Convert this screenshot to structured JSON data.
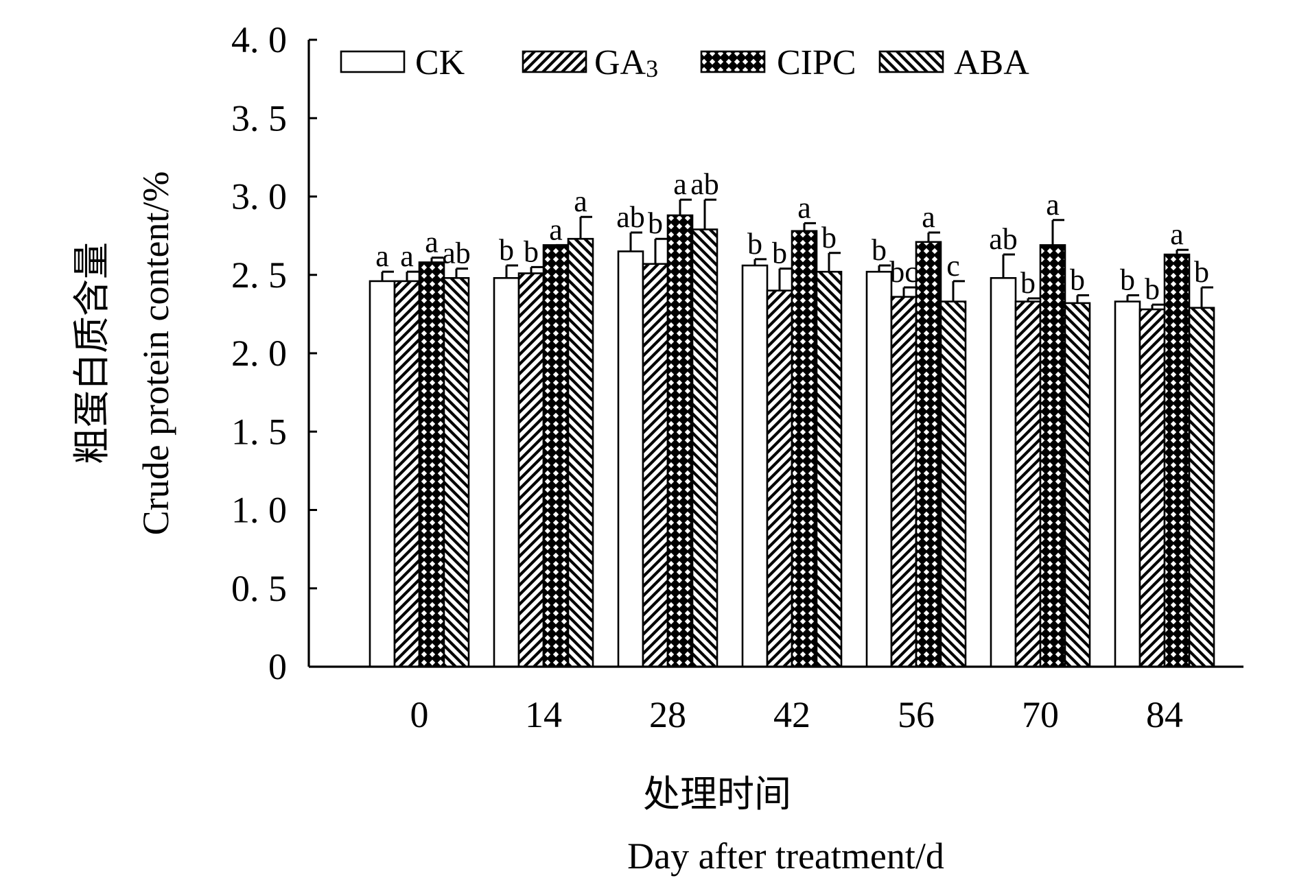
{
  "chart_data": {
    "type": "bar",
    "title": "",
    "categories": [
      "0",
      "14",
      "28",
      "42",
      "56",
      "70",
      "84"
    ],
    "xlabel_cn": "处理时间",
    "xlabel": "Day after treatment/d",
    "ylabel_cn": "粗蛋白质含量",
    "ylabel": "Crude protein content/%",
    "ylim": [
      0,
      4.0
    ],
    "yticks": [
      0,
      0.5,
      1.0,
      1.5,
      2.0,
      2.5,
      3.0,
      3.5,
      4.0
    ],
    "ytick_labels": [
      "0",
      "0. 5",
      "1. 0",
      "1. 5",
      "2. 0",
      "2. 5",
      "3. 0",
      "3. 5",
      "4. 0"
    ],
    "legend_position": "top-left",
    "series": [
      {
        "name": "CK",
        "legend_label": "CK",
        "pattern": "open",
        "values": [
          2.46,
          2.48,
          2.65,
          2.56,
          2.52,
          2.48,
          2.33
        ],
        "errors": [
          0.06,
          0.08,
          0.12,
          0.04,
          0.04,
          0.15,
          0.04
        ],
        "labels": [
          "a",
          "b",
          "ab",
          "b",
          "b",
          "ab",
          "b"
        ]
      },
      {
        "name": "GA3",
        "legend_label": "GA",
        "legend_subscript": "3",
        "pattern": "right-diagonal",
        "values": [
          2.46,
          2.51,
          2.57,
          2.4,
          2.36,
          2.33,
          2.28
        ],
        "errors": [
          0.06,
          0.04,
          0.16,
          0.14,
          0.06,
          0.02,
          0.03
        ],
        "labels": [
          "a",
          "b",
          "b",
          "b",
          "bc",
          "b",
          "b"
        ]
      },
      {
        "name": "CIPC",
        "legend_label": "CIPC",
        "pattern": "crosshatch",
        "values": [
          2.58,
          2.69,
          2.88,
          2.78,
          2.71,
          2.69,
          2.63
        ],
        "errors": [
          0.03,
          0.0,
          0.1,
          0.05,
          0.06,
          0.16,
          0.03
        ],
        "labels": [
          "a",
          "a",
          "a",
          "a",
          "a",
          "a",
          "a"
        ]
      },
      {
        "name": "ABA",
        "legend_label": "ABA",
        "pattern": "left-diagonal",
        "values": [
          2.48,
          2.73,
          2.79,
          2.52,
          2.33,
          2.32,
          2.29
        ],
        "errors": [
          0.06,
          0.14,
          0.19,
          0.12,
          0.13,
          0.05,
          0.13
        ],
        "labels": [
          "ab",
          "a",
          "ab",
          "b",
          "c",
          "b",
          "b"
        ]
      }
    ]
  }
}
